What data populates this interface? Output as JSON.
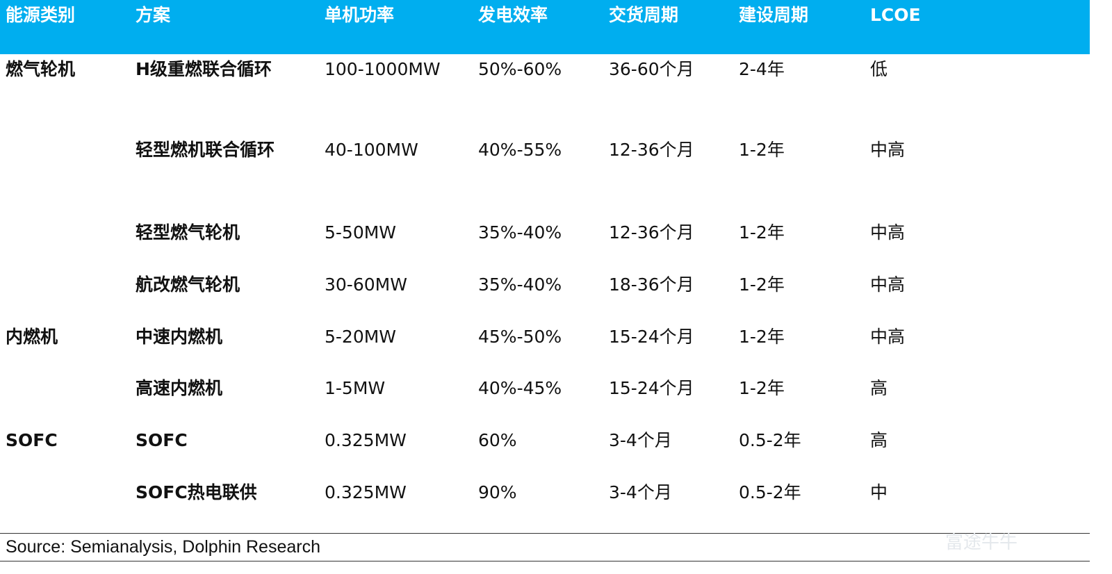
{
  "table": {
    "header": [
      "能源类别",
      "方案",
      "单机功率",
      "发电效率",
      "交货周期",
      "建设周期",
      "LCOE"
    ],
    "groups": [
      {
        "category": "燃气轮机",
        "rows": [
          [
            "H级重燃联合循环",
            "100-1000MW",
            "50%-60%",
            "36-60个月",
            "2-4年",
            "低"
          ],
          [
            "轻型燃机联合循环",
            "40-100MW",
            "40%-55%",
            "12-36个月",
            "1-2年",
            "中高"
          ],
          [
            "轻型燃气轮机",
            "5-50MW",
            "35%-40%",
            "12-36个月",
            "1-2年",
            "中高"
          ],
          [
            "航改燃气轮机",
            "30-60MW",
            "35%-40%",
            "18-36个月",
            "1-2年",
            "中高"
          ]
        ]
      },
      {
        "category": "内燃机",
        "rows": [
          [
            "中速内燃机",
            "5-20MW",
            "45%-50%",
            "15-24个月",
            "1-2年",
            "中高"
          ],
          [
            "高速内燃机",
            "1-5MW",
            "40%-45%",
            "15-24个月",
            "1-2年",
            "高"
          ]
        ]
      },
      {
        "category": "SOFC",
        "rows": [
          [
            "SOFC",
            "0.325MW",
            "60%",
            "3-4个月",
            "0.5-2年",
            "高"
          ],
          [
            "SOFC热电联供",
            "0.325MW",
            "90%",
            "3-4个月",
            "0.5-2年",
            "中"
          ]
        ]
      }
    ]
  },
  "source": "Source: Semianalysis, Dolphin Research",
  "watermark": "富途牛牛"
}
